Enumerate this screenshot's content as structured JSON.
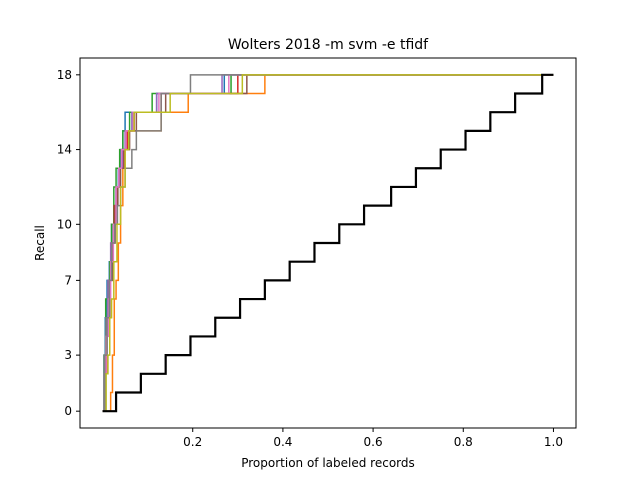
{
  "chart_data": {
    "type": "line",
    "title": "Wolters 2018 -m svm -e tfidf",
    "xlabel": "Proportion of labeled records",
    "ylabel": "Recall",
    "xlim": [
      -0.05,
      1.05
    ],
    "ylim": [
      -0.9,
      18.9
    ],
    "x_ticks": [
      {
        "value": 0.2,
        "label": "0.2"
      },
      {
        "value": 0.4,
        "label": "0.4"
      },
      {
        "value": 0.6,
        "label": "0.6"
      },
      {
        "value": 0.8,
        "label": "0.8"
      },
      {
        "value": 1.0,
        "label": "1.0"
      }
    ],
    "y_ticks": [
      {
        "value": 0,
        "label": "0"
      },
      {
        "value": 3,
        "label": "3"
      },
      {
        "value": 7,
        "label": "7"
      },
      {
        "value": 10,
        "label": "10"
      },
      {
        "value": 14,
        "label": "14"
      },
      {
        "value": 18,
        "label": "18"
      }
    ],
    "grid": false,
    "legend": "none",
    "series": [
      {
        "color": "#1f77b4",
        "style": "step-thin",
        "points": [
          [
            0.0,
            0
          ],
          [
            0.003,
            2
          ],
          [
            0.006,
            5
          ],
          [
            0.01,
            7
          ],
          [
            0.015,
            8
          ],
          [
            0.02,
            10
          ],
          [
            0.025,
            11
          ],
          [
            0.03,
            12
          ],
          [
            0.035,
            13
          ],
          [
            0.04,
            14
          ],
          [
            0.045,
            15
          ],
          [
            0.05,
            16
          ],
          [
            0.065,
            16
          ],
          [
            0.07,
            16
          ],
          [
            0.12,
            17
          ],
          [
            0.27,
            18
          ],
          [
            1.0,
            18
          ]
        ]
      },
      {
        "color": "#ff7f0e",
        "style": "step-thin",
        "points": [
          [
            0.0,
            0
          ],
          [
            0.018,
            1
          ],
          [
            0.022,
            3
          ],
          [
            0.026,
            6
          ],
          [
            0.03,
            7
          ],
          [
            0.035,
            9
          ],
          [
            0.04,
            11
          ],
          [
            0.045,
            13
          ],
          [
            0.05,
            14
          ],
          [
            0.055,
            15
          ],
          [
            0.07,
            15
          ],
          [
            0.13,
            16
          ],
          [
            0.19,
            17
          ],
          [
            0.36,
            18
          ],
          [
            1.0,
            18
          ]
        ]
      },
      {
        "color": "#2ca02c",
        "style": "step-thin",
        "points": [
          [
            0.0,
            0
          ],
          [
            0.003,
            3
          ],
          [
            0.007,
            6
          ],
          [
            0.012,
            7
          ],
          [
            0.016,
            8
          ],
          [
            0.02,
            10
          ],
          [
            0.025,
            12
          ],
          [
            0.03,
            13
          ],
          [
            0.038,
            14
          ],
          [
            0.045,
            15
          ],
          [
            0.06,
            16
          ],
          [
            0.11,
            17
          ],
          [
            0.285,
            18
          ],
          [
            1.0,
            18
          ]
        ]
      },
      {
        "color": "#d62728",
        "style": "step-thin",
        "points": [
          [
            0.0,
            0
          ],
          [
            0.005,
            2
          ],
          [
            0.009,
            5
          ],
          [
            0.014,
            7
          ],
          [
            0.02,
            9
          ],
          [
            0.026,
            11
          ],
          [
            0.032,
            12
          ],
          [
            0.038,
            13
          ],
          [
            0.045,
            14
          ],
          [
            0.055,
            15
          ],
          [
            0.07,
            16
          ],
          [
            0.13,
            17
          ],
          [
            0.3,
            18
          ],
          [
            1.0,
            18
          ]
        ]
      },
      {
        "color": "#9467bd",
        "style": "step-thin",
        "points": [
          [
            0.0,
            0
          ],
          [
            0.004,
            3
          ],
          [
            0.008,
            5
          ],
          [
            0.012,
            7
          ],
          [
            0.018,
            9
          ],
          [
            0.024,
            10
          ],
          [
            0.03,
            12
          ],
          [
            0.037,
            13
          ],
          [
            0.044,
            14
          ],
          [
            0.05,
            15
          ],
          [
            0.065,
            16
          ],
          [
            0.12,
            17
          ],
          [
            0.265,
            18
          ],
          [
            1.0,
            18
          ]
        ]
      },
      {
        "color": "#8c564b",
        "style": "step-thin",
        "points": [
          [
            0.0,
            0
          ],
          [
            0.006,
            3
          ],
          [
            0.01,
            5
          ],
          [
            0.016,
            7
          ],
          [
            0.022,
            9
          ],
          [
            0.028,
            11
          ],
          [
            0.034,
            12
          ],
          [
            0.04,
            13
          ],
          [
            0.048,
            14
          ],
          [
            0.06,
            15
          ],
          [
            0.075,
            16
          ],
          [
            0.14,
            17
          ],
          [
            0.32,
            18
          ],
          [
            1.0,
            18
          ]
        ]
      },
      {
        "color": "#e377c2",
        "style": "step-thin",
        "points": [
          [
            0.0,
            0
          ],
          [
            0.004,
            2
          ],
          [
            0.008,
            4
          ],
          [
            0.013,
            6
          ],
          [
            0.018,
            8
          ],
          [
            0.024,
            10
          ],
          [
            0.03,
            12
          ],
          [
            0.036,
            13
          ],
          [
            0.042,
            14
          ],
          [
            0.052,
            15
          ],
          [
            0.068,
            16
          ],
          [
            0.125,
            17
          ],
          [
            0.28,
            18
          ],
          [
            1.0,
            18
          ]
        ]
      },
      {
        "color": "#7f7f7f",
        "style": "step-thin",
        "points": [
          [
            0.0,
            0
          ],
          [
            0.005,
            3
          ],
          [
            0.01,
            5
          ],
          [
            0.015,
            7
          ],
          [
            0.02,
            9
          ],
          [
            0.027,
            10
          ],
          [
            0.033,
            11
          ],
          [
            0.04,
            12
          ],
          [
            0.05,
            13
          ],
          [
            0.065,
            14
          ],
          [
            0.075,
            15
          ],
          [
            0.13,
            17
          ],
          [
            0.195,
            18
          ],
          [
            1.0,
            18
          ]
        ]
      },
      {
        "color": "#bcbd22",
        "style": "step-thin",
        "points": [
          [
            0.0,
            0
          ],
          [
            0.008,
            2
          ],
          [
            0.012,
            3
          ],
          [
            0.016,
            5
          ],
          [
            0.02,
            6
          ],
          [
            0.025,
            8
          ],
          [
            0.032,
            10
          ],
          [
            0.04,
            12
          ],
          [
            0.05,
            14
          ],
          [
            0.058,
            15
          ],
          [
            0.07,
            16
          ],
          [
            0.15,
            17
          ],
          [
            0.31,
            18
          ],
          [
            1.0,
            18
          ]
        ]
      },
      {
        "color": "#000000",
        "style": "step-thick",
        "points": [
          [
            0.0,
            0
          ],
          [
            0.03,
            1
          ],
          [
            0.085,
            2
          ],
          [
            0.14,
            3
          ],
          [
            0.195,
            4
          ],
          [
            0.25,
            5
          ],
          [
            0.305,
            6
          ],
          [
            0.36,
            7
          ],
          [
            0.415,
            8
          ],
          [
            0.47,
            9
          ],
          [
            0.525,
            10
          ],
          [
            0.58,
            11
          ],
          [
            0.64,
            12
          ],
          [
            0.695,
            13
          ],
          [
            0.75,
            14
          ],
          [
            0.805,
            15
          ],
          [
            0.86,
            16
          ],
          [
            0.915,
            17
          ],
          [
            0.975,
            18
          ],
          [
            1.0,
            18
          ]
        ]
      }
    ]
  }
}
